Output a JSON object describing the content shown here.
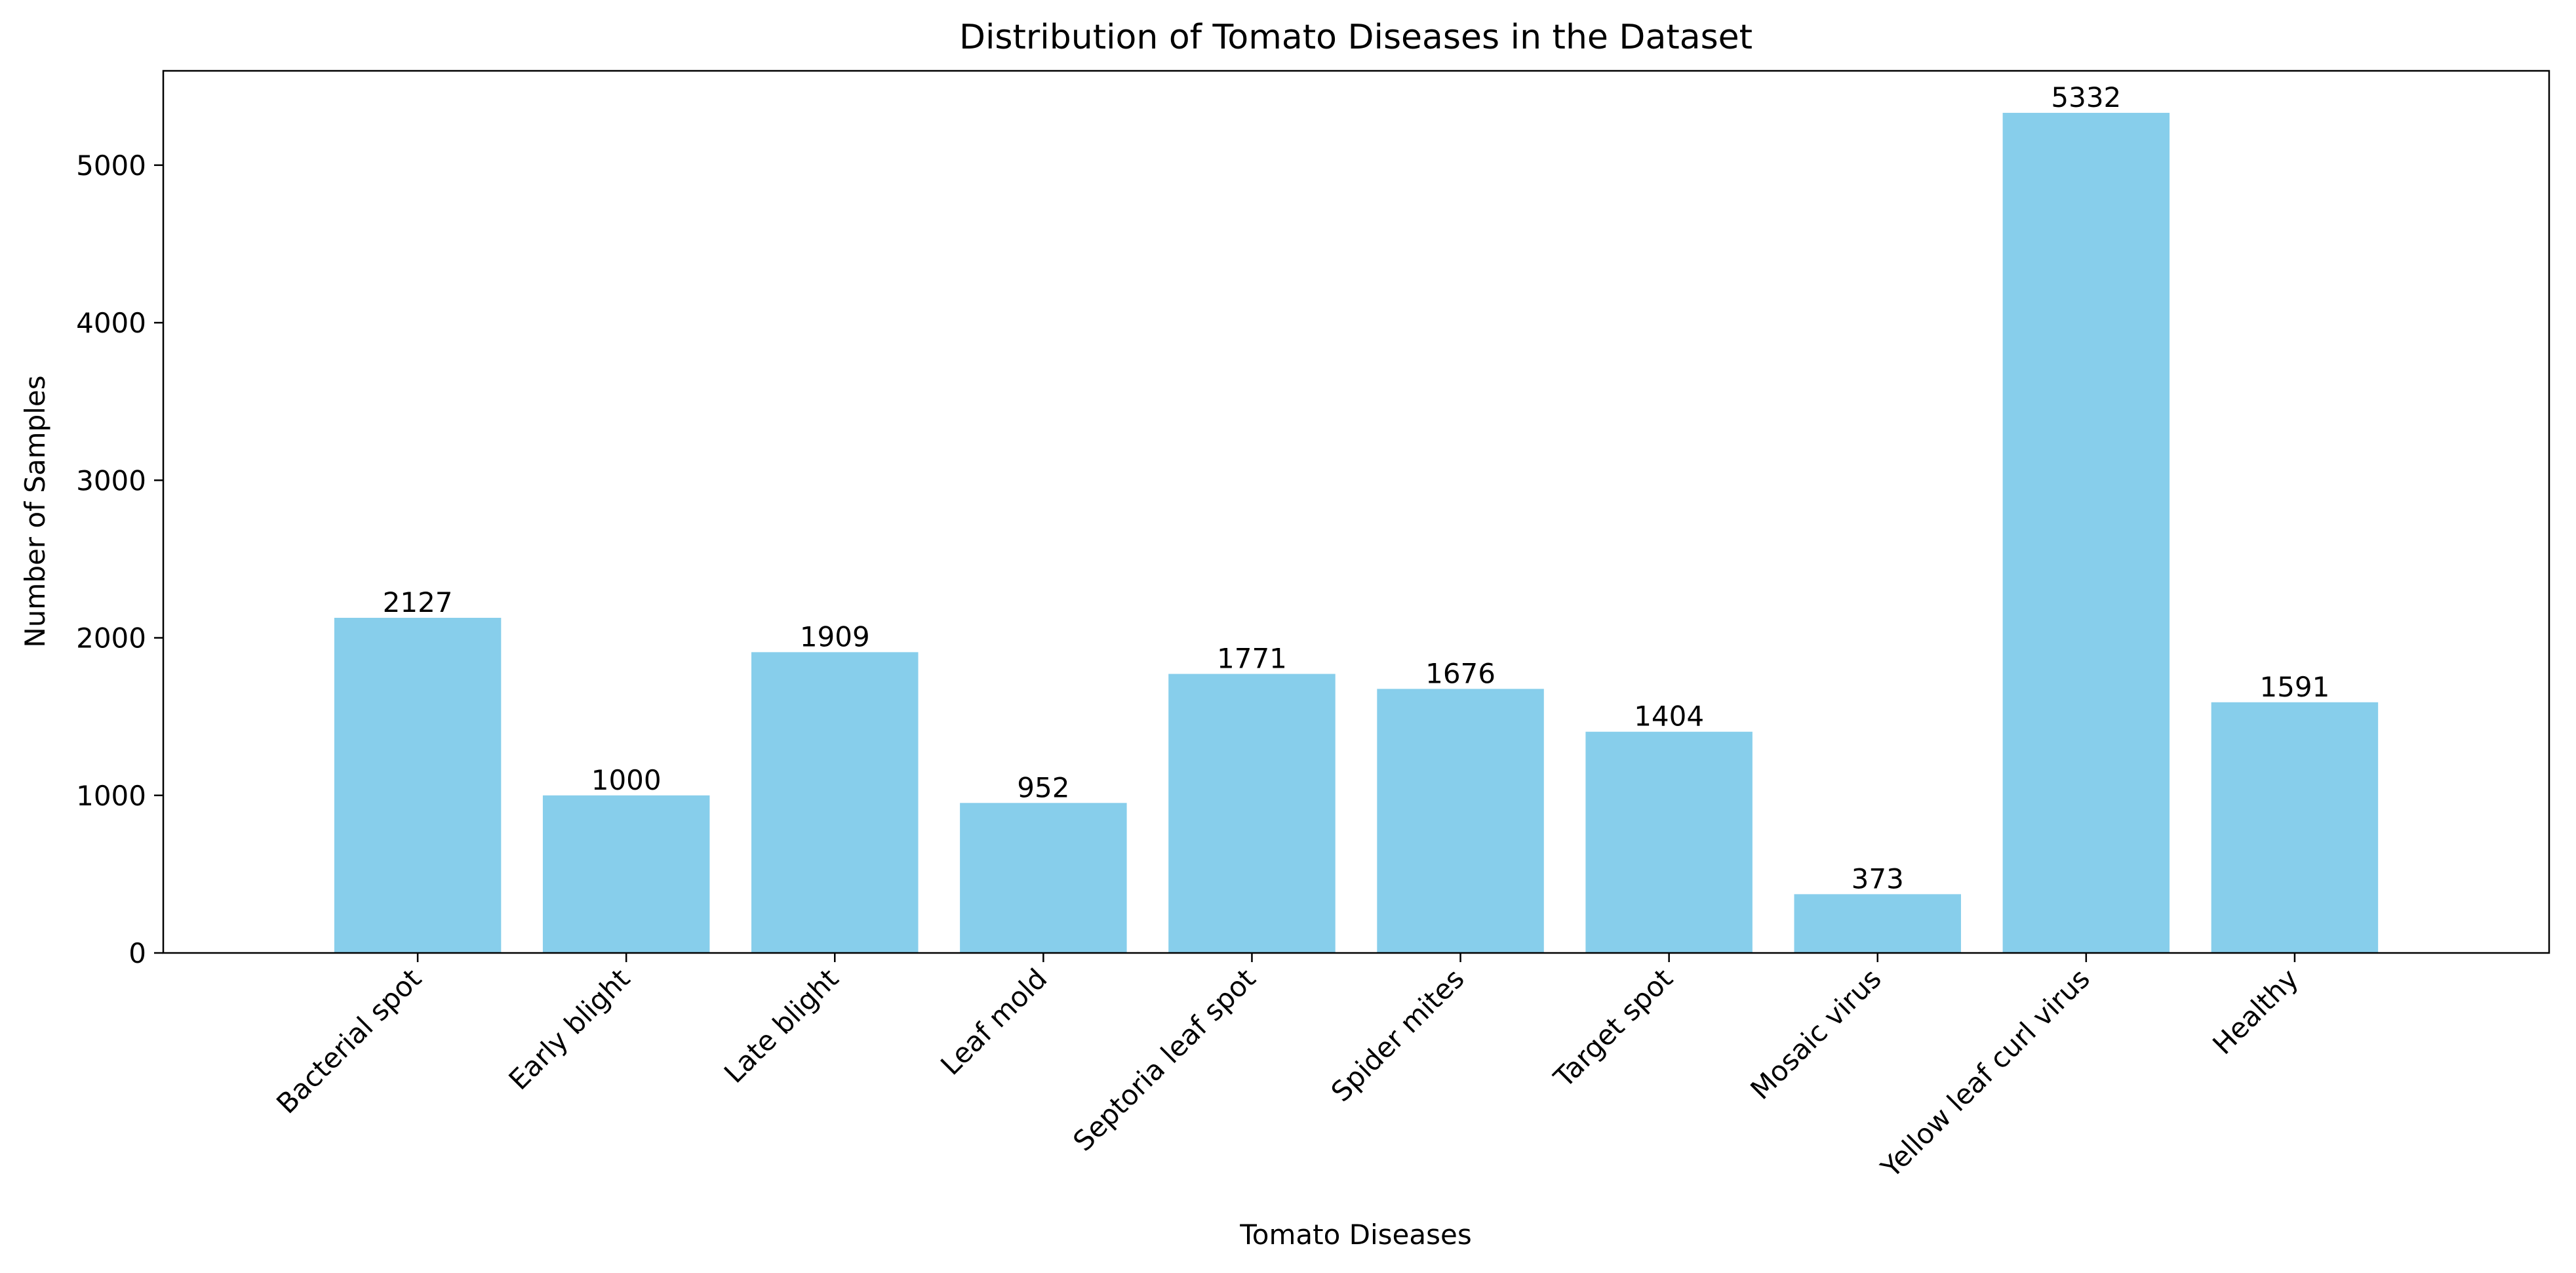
{
  "chart_data": {
    "type": "bar",
    "title": "Distribution of Tomato Diseases in the Dataset",
    "xlabel": "Tomato Diseases",
    "ylabel": "Number of Samples",
    "categories": [
      "Bacterial spot",
      "Early blight",
      "Late blight",
      "Leaf mold",
      "Septoria leaf spot",
      "Spider mites",
      "Target spot",
      "Mosaic virus",
      "Yellow leaf curl virus",
      "Healthy"
    ],
    "values": [
      2127,
      1000,
      1909,
      952,
      1771,
      1676,
      1404,
      373,
      5332,
      1591
    ],
    "data_labels": [
      "2127",
      "1000",
      "1909",
      "952",
      "1771",
      "1676",
      "1404",
      "373",
      "5332",
      "1591"
    ],
    "ylim": [
      0,
      5598.6
    ],
    "yticks": [
      0,
      1000,
      2000,
      3000,
      4000,
      5000
    ],
    "ytick_labels": [
      "0",
      "1000",
      "2000",
      "3000",
      "4000",
      "5000"
    ],
    "grid": false,
    "legend": "none",
    "bar_color": "#87CEEB"
  }
}
